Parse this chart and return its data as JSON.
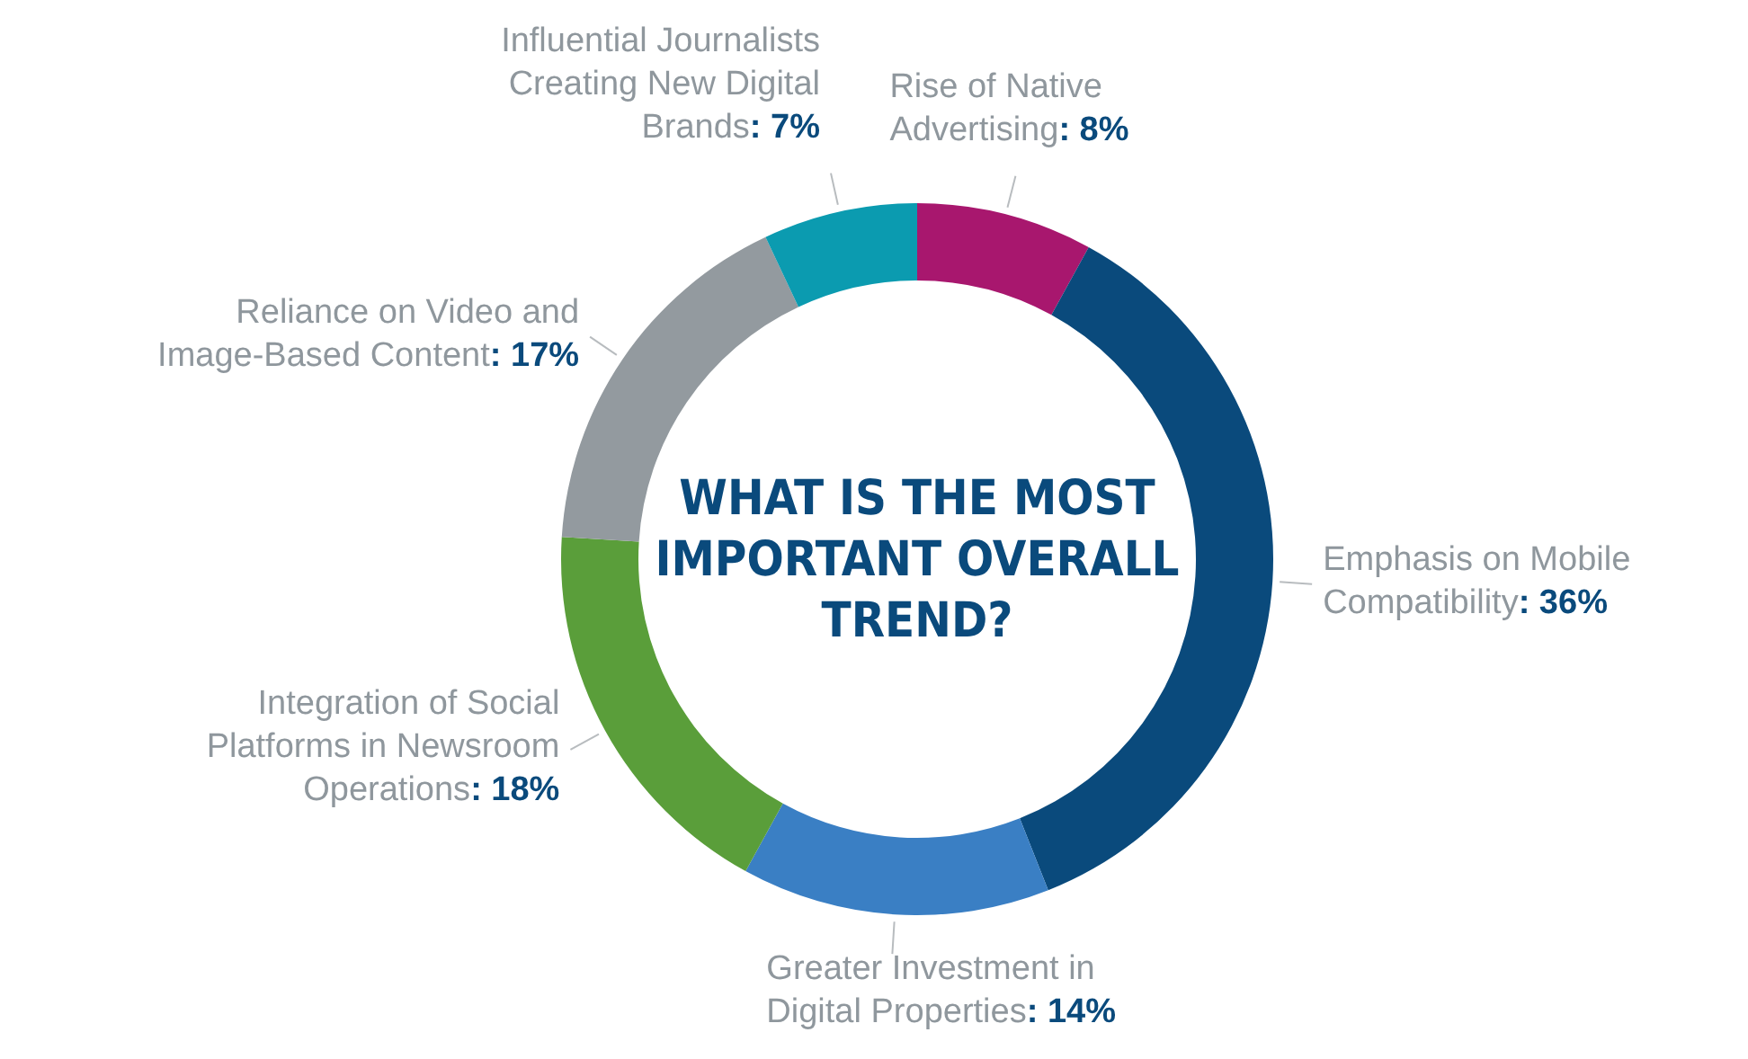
{
  "chart_data": {
    "type": "donut",
    "title": "WHAT IS THE MOST IMPORTANT OVERALL TREND?",
    "categories": [
      "Rise of Native Advertising",
      "Emphasis on Mobile Compatibility",
      "Greater Investment in Digital Properties",
      "Integration of Social Platforms in Newsroom Operations",
      "Reliance on Video and Image-Based Content",
      "Influential Journalists Creating New Digital Brands"
    ],
    "values": [
      8,
      36,
      14,
      18,
      17,
      7
    ],
    "value_labels": [
      ": 8%",
      ": 36%",
      ": 14%",
      ": 18%",
      ": 17%",
      ": 7%"
    ],
    "colors": [
      "#a8176e",
      "#0a4a7c",
      "#3a7fc4",
      "#5a9e3a",
      "#939a9f",
      "#0b9bb0"
    ]
  }
}
